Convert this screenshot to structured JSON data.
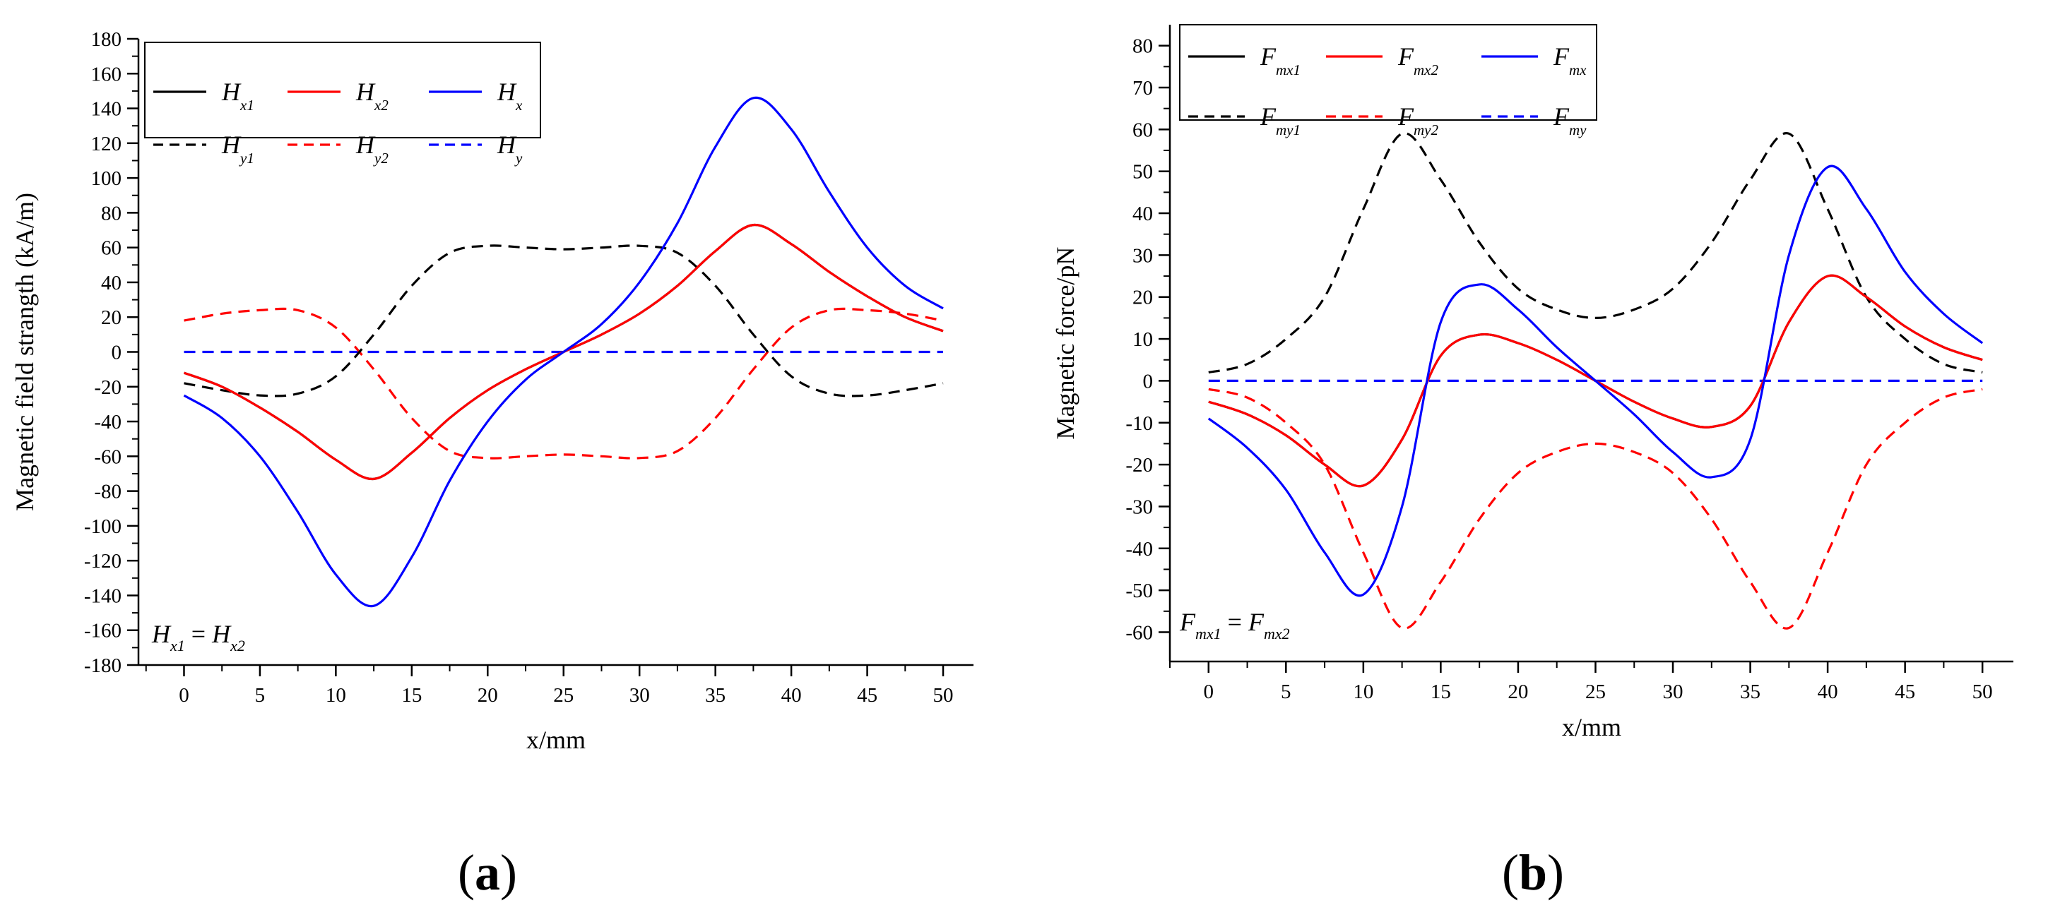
{
  "figure": {
    "panels": [
      {
        "id": "a",
        "label": "(a)",
        "label_letter": "a",
        "annotation": {
          "lhs": "H",
          "lhs_sub": "x1",
          "eq": " = ",
          "rhs": "H",
          "rhs_sub": "x2"
        }
      },
      {
        "id": "b",
        "label": "(b)",
        "label_letter": "b",
        "annotation": {
          "lhs": "F",
          "lhs_sub": "mx1",
          "eq": " = ",
          "rhs": "F",
          "rhs_sub": "mx2"
        }
      }
    ]
  },
  "chart_data": [
    {
      "type": "line",
      "title": "",
      "xlabel": "x/mm",
      "ylabel": "Magnetic field strangth (kA/m)",
      "xlim": [
        -3,
        52
      ],
      "ylim": [
        -180,
        180
      ],
      "xticks": [
        0,
        5,
        10,
        15,
        20,
        25,
        30,
        35,
        40,
        45,
        50
      ],
      "yticks": [
        -180,
        -160,
        -140,
        -120,
        -100,
        -80,
        -60,
        -40,
        -20,
        0,
        20,
        40,
        60,
        80,
        100,
        120,
        140,
        160,
        180
      ],
      "grid": false,
      "legend_position": "top-left",
      "x": [
        0,
        2.5,
        5,
        7.5,
        10,
        12.5,
        15,
        17.5,
        20,
        22.5,
        25,
        27.5,
        30,
        32.5,
        35,
        37.5,
        40,
        42.5,
        45,
        47.5,
        50
      ],
      "series": [
        {
          "name": "H",
          "sub": "x1",
          "color": "#000000",
          "dash": "solid",
          "values": [
            -12,
            -20,
            -32,
            -46,
            -62,
            -73,
            -58,
            -38,
            -22,
            -10,
            0,
            10,
            22,
            38,
            58,
            73,
            62,
            46,
            32,
            20,
            12
          ]
        },
        {
          "name": "H",
          "sub": "x2",
          "color": "#ff0000",
          "dash": "solid",
          "values": [
            -12,
            -20,
            -32,
            -46,
            -62,
            -73,
            -58,
            -38,
            -22,
            -10,
            0,
            10,
            22,
            38,
            58,
            73,
            62,
            46,
            32,
            20,
            12
          ]
        },
        {
          "name": "H",
          "sub": "x",
          "color": "#0000ff",
          "dash": "solid",
          "values": [
            -25,
            -38,
            -60,
            -92,
            -128,
            -146,
            -118,
            -74,
            -40,
            -16,
            0,
            16,
            40,
            74,
            118,
            146,
            128,
            92,
            60,
            38,
            25
          ]
        },
        {
          "name": "H",
          "sub": "y1",
          "color": "#000000",
          "dash": "dashed",
          "values": [
            -18,
            -22,
            -25,
            -24,
            -14,
            10,
            38,
            57,
            61,
            60,
            59,
            60,
            61,
            57,
            38,
            10,
            -14,
            -24,
            -25,
            -22,
            -18
          ]
        },
        {
          "name": "H",
          "sub": "y2",
          "color": "#ff0000",
          "dash": "dashed",
          "values": [
            18,
            22,
            24,
            24,
            14,
            -10,
            -38,
            -57,
            -61,
            -60,
            -59,
            -60,
            -61,
            -57,
            -38,
            -10,
            14,
            24,
            24,
            22,
            18
          ]
        },
        {
          "name": "H",
          "sub": "y",
          "color": "#0000ff",
          "dash": "dashed",
          "values": [
            0,
            0,
            0,
            0,
            0,
            0,
            0,
            0,
            0,
            0,
            0,
            0,
            0,
            0,
            0,
            0,
            0,
            0,
            0,
            0,
            0
          ]
        }
      ]
    },
    {
      "type": "line",
      "title": "",
      "xlabel": "x/mm",
      "ylabel": "Magnetic force/pN",
      "xlim": [
        -2.5,
        52
      ],
      "ylim": [
        -67,
        85
      ],
      "xticks": [
        0,
        5,
        10,
        15,
        20,
        25,
        30,
        35,
        40,
        45,
        50
      ],
      "yticks": [
        -60,
        -50,
        -40,
        -30,
        -20,
        -10,
        0,
        10,
        20,
        30,
        40,
        50,
        60,
        70,
        80
      ],
      "grid": false,
      "legend_position": "top-left",
      "x": [
        0,
        2.5,
        5,
        7.5,
        10,
        12.5,
        15,
        17.5,
        20,
        22.5,
        25,
        27.5,
        30,
        32.5,
        35,
        37.5,
        40,
        42.5,
        45,
        47.5,
        50
      ],
      "series": [
        {
          "name": "F",
          "sub": "mx1",
          "color": "#000000",
          "dash": "solid",
          "values": [
            -5,
            -8,
            -13,
            -20,
            -25,
            -14,
            6,
            11,
            9,
            5,
            0,
            -5,
            -9,
            -11,
            -6,
            14,
            25,
            20,
            13,
            8,
            5
          ]
        },
        {
          "name": "F",
          "sub": "mx2",
          "color": "#ff0000",
          "dash": "solid",
          "values": [
            -5,
            -8,
            -13,
            -20,
            -25,
            -14,
            6,
            11,
            9,
            5,
            0,
            -5,
            -9,
            -11,
            -6,
            14,
            25,
            20,
            13,
            8,
            5
          ]
        },
        {
          "name": "F",
          "sub": "mx",
          "color": "#0000ff",
          "dash": "solid",
          "values": [
            -9,
            -16,
            -26,
            -41,
            -51,
            -30,
            14,
            23,
            17,
            8,
            0,
            -8,
            -17,
            -23,
            -14,
            30,
            51,
            41,
            26,
            16,
            9
          ]
        },
        {
          "name": "F",
          "sub": "my1",
          "color": "#000000",
          "dash": "dashed",
          "values": [
            2,
            4,
            10,
            20,
            41,
            59,
            48,
            33,
            22,
            17,
            15,
            17,
            22,
            33,
            48,
            59,
            41,
            20,
            10,
            4,
            2
          ]
        },
        {
          "name": "F",
          "sub": "my2",
          "color": "#ff0000",
          "dash": "dashed",
          "values": [
            -2,
            -4,
            -10,
            -20,
            -41,
            -59,
            -48,
            -33,
            -22,
            -17,
            -15,
            -17,
            -22,
            -33,
            -48,
            -59,
            -41,
            -20,
            -10,
            -4,
            -2
          ]
        },
        {
          "name": "F",
          "sub": "my",
          "color": "#0000ff",
          "dash": "dashed",
          "values": [
            0,
            0,
            0,
            0,
            0,
            0,
            0,
            0,
            0,
            0,
            0,
            0,
            0,
            0,
            0,
            0,
            0,
            0,
            0,
            0,
            0
          ]
        }
      ]
    }
  ]
}
